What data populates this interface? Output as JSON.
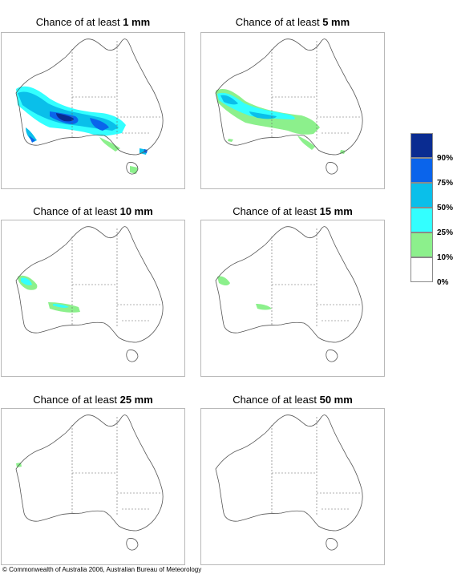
{
  "title_prefix": "Chance of at least",
  "panels": [
    {
      "threshold": "1 mm"
    },
    {
      "threshold": "5 mm"
    },
    {
      "threshold": "10 mm"
    },
    {
      "threshold": "15 mm"
    },
    {
      "threshold": "25 mm"
    },
    {
      "threshold": "50 mm"
    }
  ],
  "legend": {
    "labels": [
      "90%",
      "75%",
      "50%",
      "25%",
      "10%",
      "0%"
    ],
    "colors": [
      "#0a2c91",
      "#0a64eb",
      "#0abfea",
      "#33ffff",
      "#8cf08c",
      "#ffffff"
    ]
  },
  "copyright": "© Commonwealth of Australia 2006, Australian Bureau of Meteorology"
}
